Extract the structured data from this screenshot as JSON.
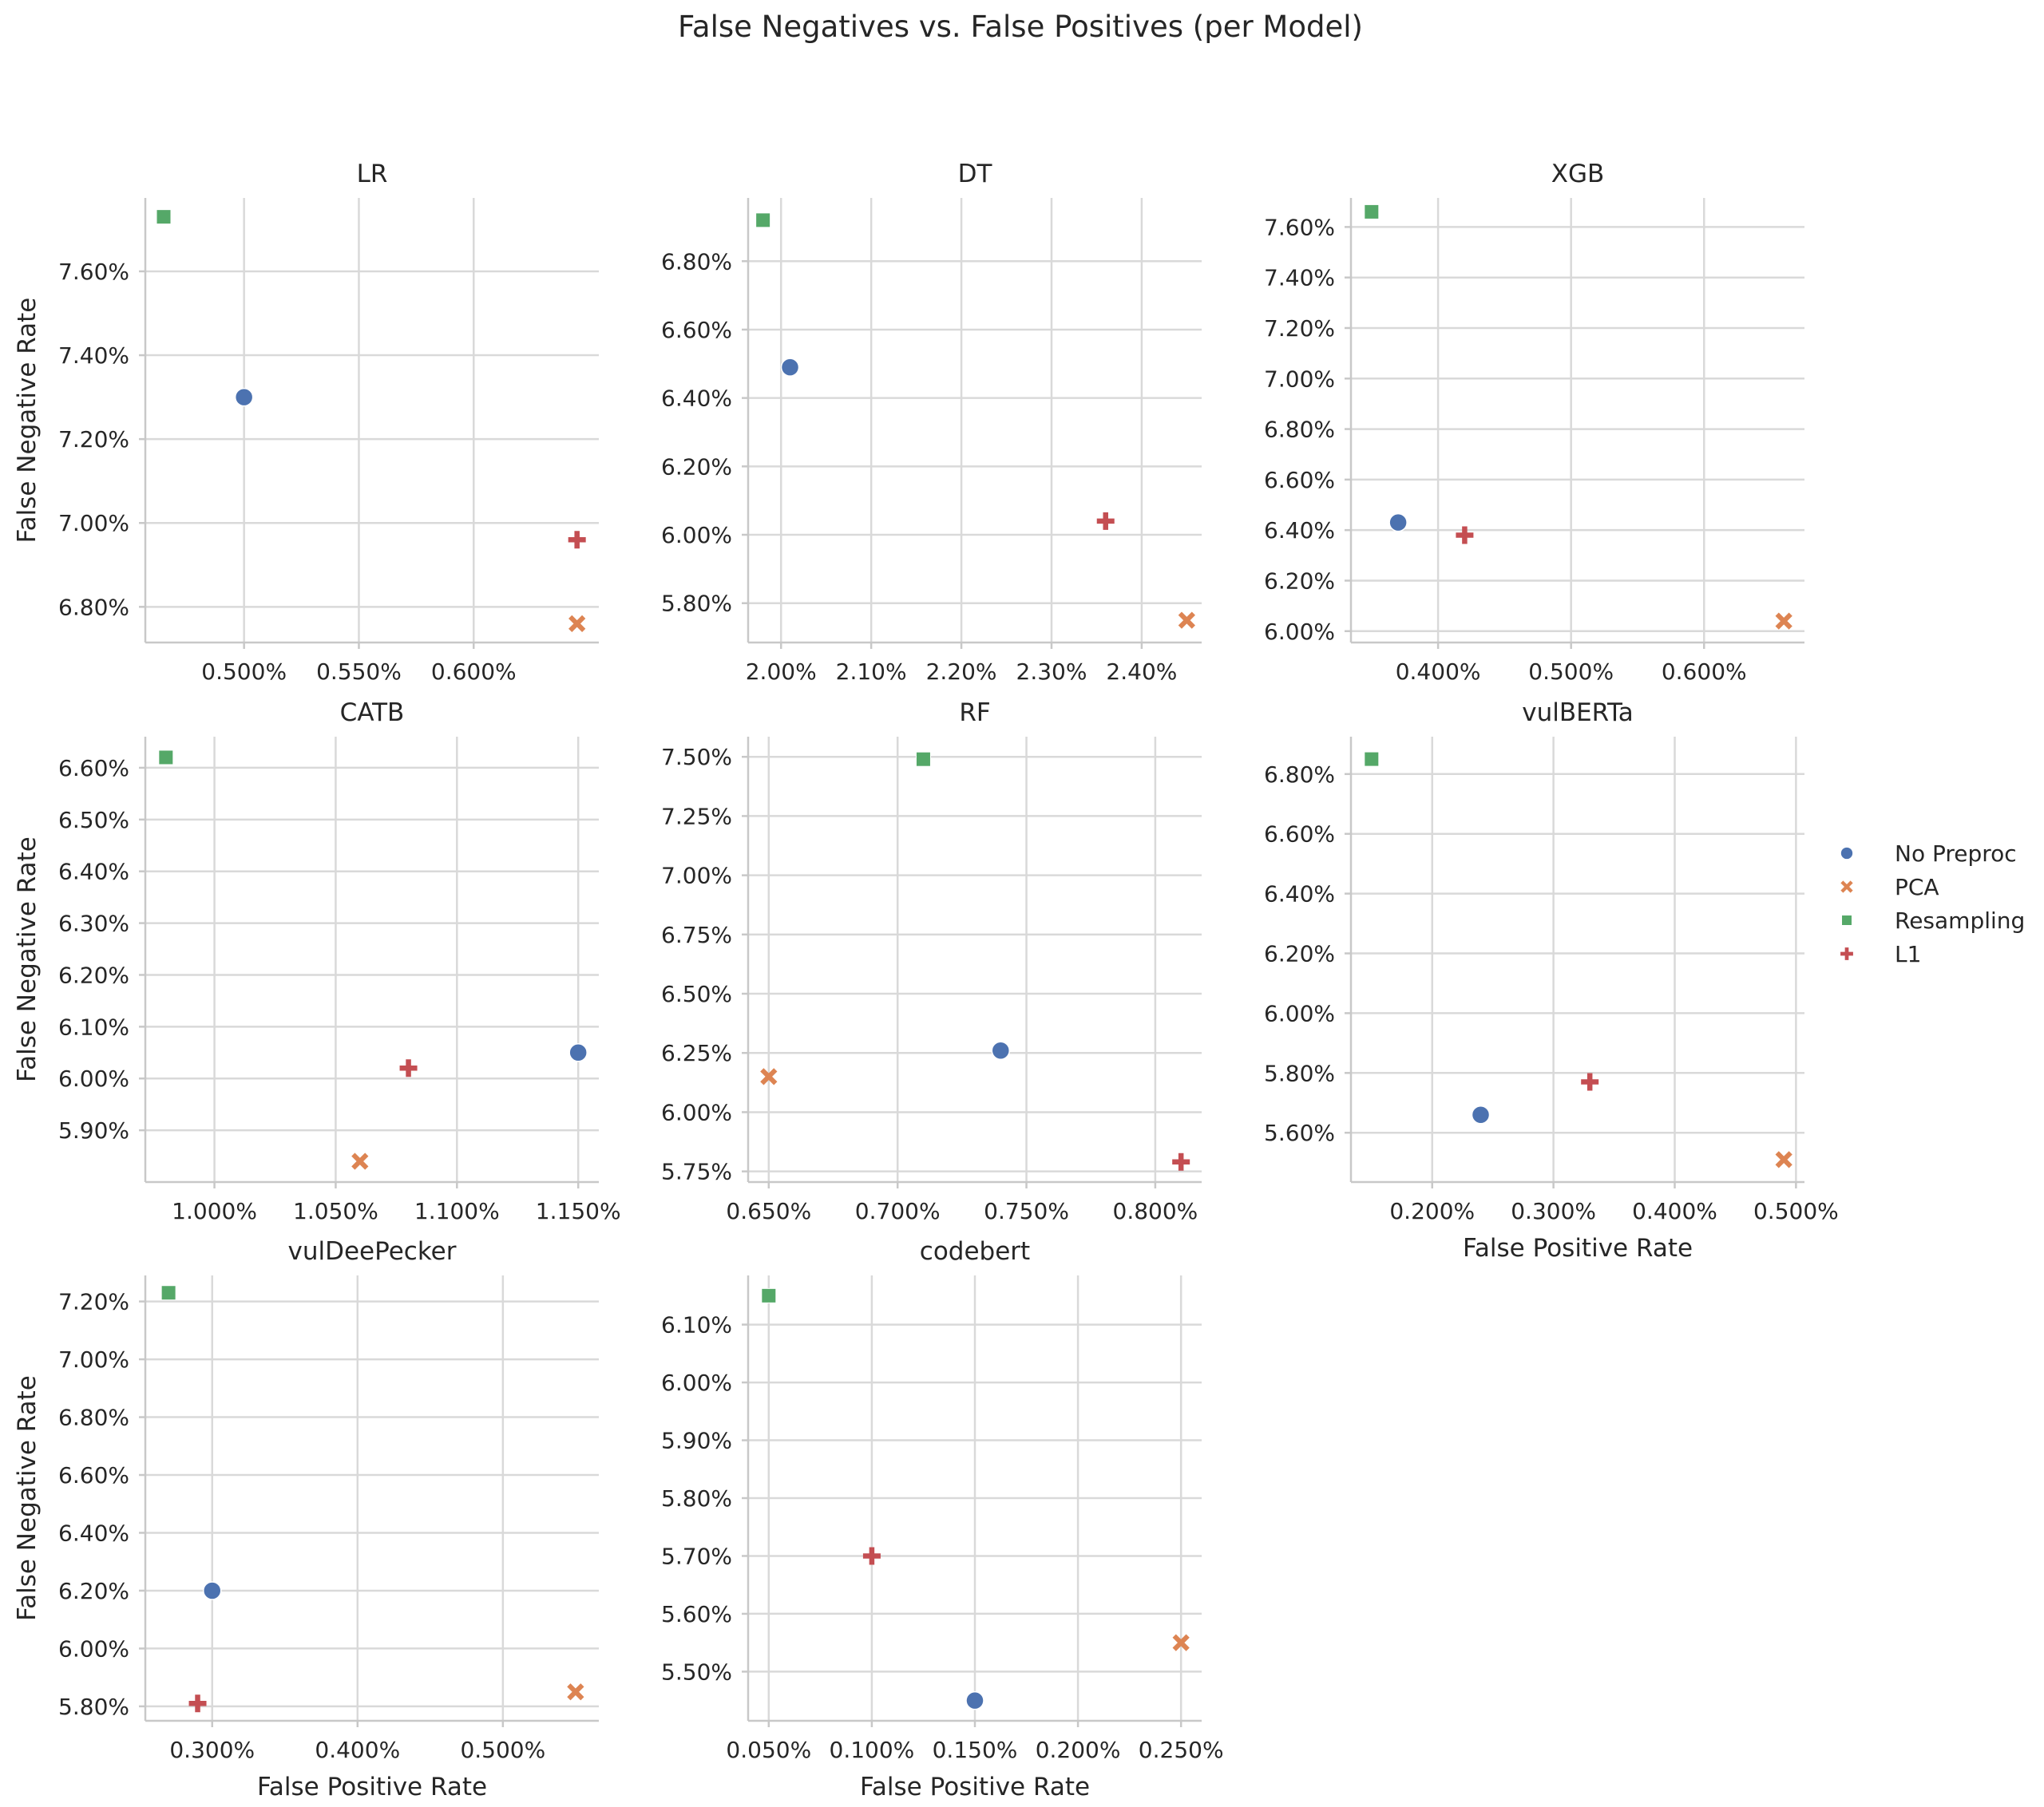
{
  "colors": {
    "No Preproc": "#4c72b0",
    "PCA": "#dd8452",
    "Resampling": "#55a868",
    "L1": "#c44e52"
  },
  "chart_data": {
    "type": "scatter",
    "title": "False Negatives vs. False Positives (per Model)",
    "xlabel": "False Positive Rate",
    "ylabel": "False Negative Rate",
    "grid": true,
    "legend_placement": "center-right",
    "legend": [
      {
        "name": "No Preproc",
        "marker": "circle"
      },
      {
        "name": "PCA",
        "marker": "x"
      },
      {
        "name": "Resampling",
        "marker": "square"
      },
      {
        "name": "L1",
        "marker": "plus"
      }
    ],
    "panels": [
      {
        "title": "LR",
        "xlim": [
          0.457,
          0.6545
        ],
        "ylim": [
          6.715,
          7.775
        ],
        "xticks": [
          0.5,
          0.55,
          0.6
        ],
        "xtick_labels": [
          "0.500%",
          "0.550%",
          "0.600%"
        ],
        "yticks": [
          6.8,
          7.0,
          7.2,
          7.4,
          7.6
        ],
        "ytick_labels": [
          "6.80%",
          "7.00%",
          "7.20%",
          "7.40%",
          "7.60%"
        ],
        "points": [
          {
            "series": "No Preproc",
            "x": 0.5,
            "y": 7.3
          },
          {
            "series": "PCA",
            "x": 0.645,
            "y": 6.76
          },
          {
            "series": "Resampling",
            "x": 0.465,
            "y": 7.73
          },
          {
            "series": "L1",
            "x": 0.645,
            "y": 6.96
          }
        ]
      },
      {
        "title": "DT",
        "xlim": [
          1.9635,
          2.4665
        ],
        "ylim": [
          5.685,
          6.985
        ],
        "xticks": [
          2.0,
          2.1,
          2.2,
          2.3,
          2.4
        ],
        "xtick_labels": [
          "2.00%",
          "2.10%",
          "2.20%",
          "2.30%",
          "2.40%"
        ],
        "yticks": [
          5.8,
          6.0,
          6.2,
          6.4,
          6.6,
          6.8
        ],
        "ytick_labels": [
          "5.80%",
          "6.00%",
          "6.20%",
          "6.40%",
          "6.60%",
          "6.80%"
        ],
        "points": [
          {
            "series": "No Preproc",
            "x": 2.01,
            "y": 6.49
          },
          {
            "series": "PCA",
            "x": 2.45,
            "y": 5.75
          },
          {
            "series": "Resampling",
            "x": 1.98,
            "y": 6.92
          },
          {
            "series": "L1",
            "x": 2.36,
            "y": 6.04
          }
        ]
      },
      {
        "title": "XGB",
        "xlim": [
          0.3345,
          0.6755
        ],
        "ylim": [
          5.955,
          7.715
        ],
        "xticks": [
          0.4,
          0.5,
          0.6
        ],
        "xtick_labels": [
          "0.400%",
          "0.500%",
          "0.600%"
        ],
        "yticks": [
          6.0,
          6.2,
          6.4,
          6.6,
          6.8,
          7.0,
          7.2,
          7.4,
          7.6
        ],
        "ytick_labels": [
          "6.00%",
          "6.20%",
          "6.40%",
          "6.60%",
          "6.80%",
          "7.00%",
          "7.20%",
          "7.40%",
          "7.60%"
        ],
        "points": [
          {
            "series": "No Preproc",
            "x": 0.37,
            "y": 6.43
          },
          {
            "series": "PCA",
            "x": 0.66,
            "y": 6.04
          },
          {
            "series": "Resampling",
            "x": 0.35,
            "y": 7.66
          },
          {
            "series": "L1",
            "x": 0.42,
            "y": 6.38
          }
        ]
      },
      {
        "title": "CATB",
        "xlim": [
          0.9715,
          1.1585
        ],
        "ylim": [
          5.8,
          6.66
        ],
        "xticks": [
          1.0,
          1.05,
          1.1,
          1.15
        ],
        "xtick_labels": [
          "1.000%",
          "1.050%",
          "1.100%",
          "1.150%"
        ],
        "yticks": [
          5.9,
          6.0,
          6.1,
          6.2,
          6.3,
          6.4,
          6.5,
          6.6
        ],
        "ytick_labels": [
          "5.90%",
          "6.00%",
          "6.10%",
          "6.20%",
          "6.30%",
          "6.40%",
          "6.50%",
          "6.60%"
        ],
        "points": [
          {
            "series": "No Preproc",
            "x": 1.15,
            "y": 6.05
          },
          {
            "series": "PCA",
            "x": 1.06,
            "y": 5.84
          },
          {
            "series": "Resampling",
            "x": 0.98,
            "y": 6.62
          },
          {
            "series": "L1",
            "x": 1.08,
            "y": 6.02
          }
        ]
      },
      {
        "title": "RF",
        "xlim": [
          0.642,
          0.818
        ],
        "ylim": [
          5.705,
          7.585
        ],
        "xticks": [
          0.65,
          0.7,
          0.75,
          0.8
        ],
        "xtick_labels": [
          "0.650%",
          "0.700%",
          "0.750%",
          "0.800%"
        ],
        "yticks": [
          5.75,
          6.0,
          6.25,
          6.5,
          6.75,
          7.0,
          7.25,
          7.5
        ],
        "ytick_labels": [
          "5.75%",
          "6.00%",
          "6.25%",
          "6.50%",
          "6.75%",
          "7.00%",
          "7.25%",
          "7.50%"
        ],
        "points": [
          {
            "series": "No Preproc",
            "x": 0.74,
            "y": 6.26
          },
          {
            "series": "PCA",
            "x": 0.65,
            "y": 6.15
          },
          {
            "series": "Resampling",
            "x": 0.71,
            "y": 7.49
          },
          {
            "series": "L1",
            "x": 0.81,
            "y": 5.79
          }
        ]
      },
      {
        "title": "vulBERTa",
        "xlim": [
          0.133,
          0.507
        ],
        "ylim": [
          5.435,
          6.925
        ],
        "xticks": [
          0.2,
          0.3,
          0.4,
          0.5
        ],
        "xtick_labels": [
          "0.200%",
          "0.300%",
          "0.400%",
          "0.500%"
        ],
        "yticks": [
          5.6,
          5.8,
          6.0,
          6.2,
          6.4,
          6.6,
          6.8
        ],
        "ytick_labels": [
          "5.60%",
          "5.80%",
          "6.00%",
          "6.20%",
          "6.40%",
          "6.60%",
          "6.80%"
        ],
        "points": [
          {
            "series": "No Preproc",
            "x": 0.24,
            "y": 5.66
          },
          {
            "series": "PCA",
            "x": 0.49,
            "y": 5.51
          },
          {
            "series": "Resampling",
            "x": 0.15,
            "y": 6.85
          },
          {
            "series": "L1",
            "x": 0.33,
            "y": 5.77
          }
        ]
      },
      {
        "title": "vulDeePecker",
        "xlim": [
          0.254,
          0.566
        ],
        "ylim": [
          5.75,
          7.29
        ],
        "xticks": [
          0.3,
          0.4,
          0.5
        ],
        "xtick_labels": [
          "0.300%",
          "0.400%",
          "0.500%"
        ],
        "yticks": [
          5.8,
          6.0,
          6.2,
          6.4,
          6.6,
          6.8,
          7.0,
          7.2
        ],
        "ytick_labels": [
          "5.80%",
          "6.00%",
          "6.20%",
          "6.40%",
          "6.60%",
          "6.80%",
          "7.00%",
          "7.20%"
        ],
        "points": [
          {
            "series": "No Preproc",
            "x": 0.3,
            "y": 6.2
          },
          {
            "series": "PCA",
            "x": 0.55,
            "y": 5.85
          },
          {
            "series": "Resampling",
            "x": 0.27,
            "y": 7.23
          },
          {
            "series": "L1",
            "x": 0.29,
            "y": 5.81
          }
        ]
      },
      {
        "title": "codebert",
        "xlim": [
          0.04,
          0.26
        ],
        "ylim": [
          5.415,
          6.185
        ],
        "xticks": [
          0.05,
          0.1,
          0.15,
          0.2,
          0.25
        ],
        "xtick_labels": [
          "0.050%",
          "0.100%",
          "0.150%",
          "0.200%",
          "0.250%"
        ],
        "yticks": [
          5.5,
          5.6,
          5.7,
          5.8,
          5.9,
          6.0,
          6.1
        ],
        "ytick_labels": [
          "5.50%",
          "5.60%",
          "5.70%",
          "5.80%",
          "5.90%",
          "6.00%",
          "6.10%"
        ],
        "points": [
          {
            "series": "No Preproc",
            "x": 0.15,
            "y": 5.45
          },
          {
            "series": "PCA",
            "x": 0.25,
            "y": 5.55
          },
          {
            "series": "Resampling",
            "x": 0.05,
            "y": 6.15
          },
          {
            "series": "L1",
            "x": 0.1,
            "y": 5.7
          }
        ]
      }
    ]
  }
}
